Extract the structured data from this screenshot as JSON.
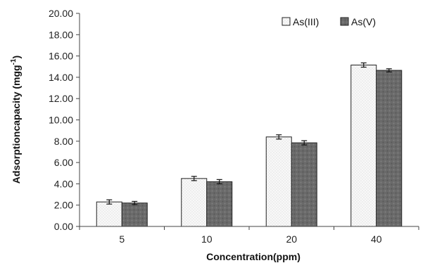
{
  "chart_data": {
    "type": "bar",
    "categories": [
      "5",
      "10",
      "20",
      "40"
    ],
    "series": [
      {
        "name": "As(III)",
        "values": [
          2.3,
          4.5,
          8.4,
          15.15
        ],
        "errors": [
          0.2,
          0.2,
          0.2,
          0.2
        ],
        "color": "#f7f7f7"
      },
      {
        "name": "As(V)",
        "values": [
          2.2,
          4.2,
          7.85,
          14.65
        ],
        "errors": [
          0.15,
          0.2,
          0.2,
          0.15
        ],
        "color": "#6f6f6f"
      }
    ],
    "ylim": [
      0,
      20
    ],
    "yticks": [
      "0.00",
      "2.00",
      "4.00",
      "6.00",
      "8.00",
      "10.00",
      "12.00",
      "14.00",
      "16.00",
      "18.00",
      "20.00"
    ],
    "xlabel": "Concentration(ppm)",
    "ylabel": "Adsorptioncapacity (mgg",
    "ylabel_sup": "-1",
    "ylabel_close": ")",
    "grid": false,
    "legend": "top-right"
  }
}
